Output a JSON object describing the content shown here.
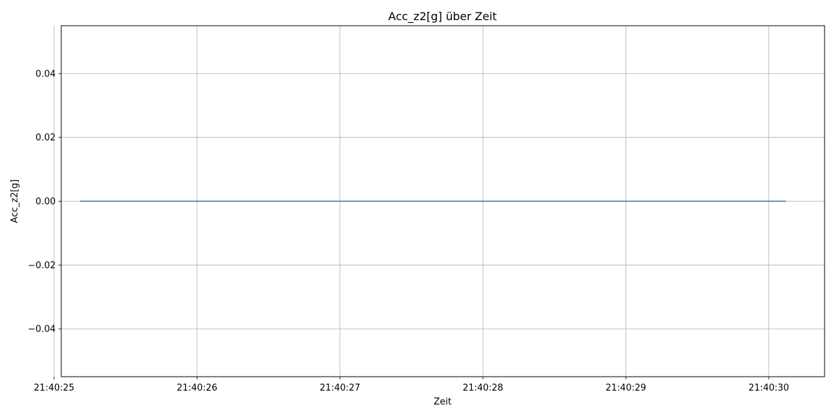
{
  "chart_data": {
    "type": "line",
    "title": "Acc_z2[g] über Zeit",
    "xlabel": "Zeit",
    "ylabel": "Acc_z2[g]",
    "x_tick_labels": [
      "21:40:25",
      "21:40:26",
      "21:40:27",
      "21:40:28",
      "21:40:29",
      "21:40:30"
    ],
    "y_tick_labels": [
      "−0.04",
      "−0.02",
      "0.00",
      "0.02",
      "0.04"
    ],
    "y_tick_values": [
      -0.04,
      -0.02,
      0.0,
      0.02,
      0.04
    ],
    "xlim": [
      "21:40:25.050",
      "21:40:30.390"
    ],
    "ylim": [
      -0.055,
      0.055
    ],
    "grid": true,
    "series": [
      {
        "color": "#1f77b4",
        "x": [
          "21:40:25.180",
          "21:40:30.120"
        ],
        "y": [
          0.0,
          0.0
        ]
      }
    ]
  }
}
